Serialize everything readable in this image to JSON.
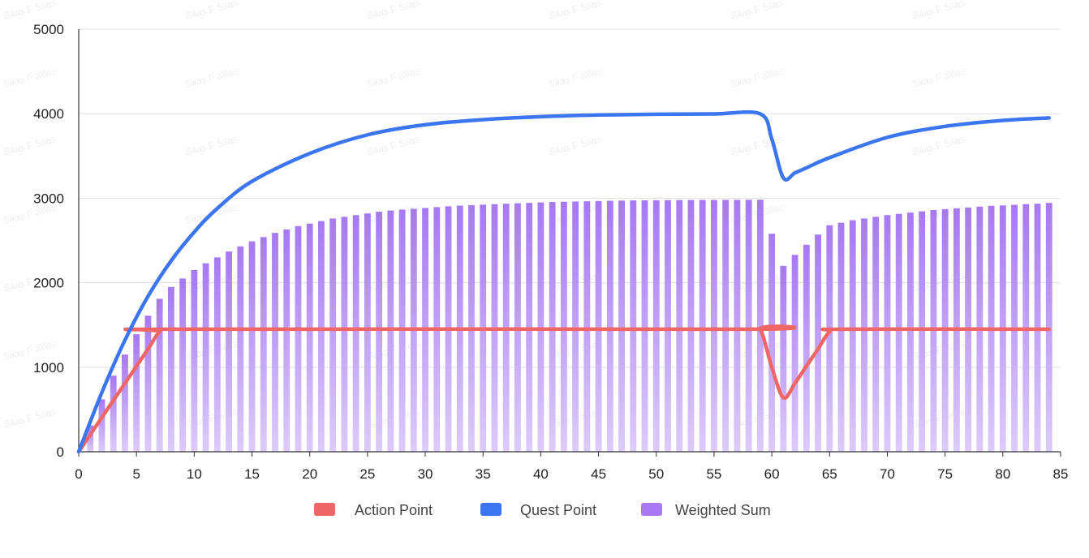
{
  "chart_data": {
    "type": "bar",
    "xlim": [
      0,
      85
    ],
    "ylim": [
      0,
      5000
    ],
    "x_ticks": [
      0,
      5,
      10,
      15,
      20,
      25,
      30,
      35,
      40,
      45,
      50,
      55,
      60,
      65,
      70,
      75,
      80,
      85
    ],
    "y_ticks": [
      0,
      1000,
      2000,
      3000,
      4000,
      5000
    ],
    "grid": "horizontal",
    "legend_position": "bottom-center",
    "watermark_text": "Silas F Silas",
    "colors": {
      "action_point": "#ee6666",
      "quest_point": "#3b76f0",
      "weighted_sum_top": "#a779f2",
      "weighted_sum_bottom": "#dccbfa"
    },
    "legend": [
      {
        "key": "action_point",
        "label": "Action Point"
      },
      {
        "key": "quest_point",
        "label": "Quest Point"
      },
      {
        "key": "weighted_sum",
        "label": "Weighted Sum"
      }
    ],
    "series": [
      {
        "name": "Action Point",
        "type": "line",
        "x": [
          0,
          2,
          4,
          6,
          7,
          8,
          58,
          59,
          60,
          61,
          62,
          63,
          64,
          65,
          66,
          84
        ],
        "values": [
          0,
          405,
          810,
          1215,
          1420,
          1450,
          1450,
          1450,
          1000,
          640,
          810,
          1015,
          1215,
          1420,
          1450,
          1450
        ]
      },
      {
        "name": "Quest Point",
        "type": "line",
        "x": [
          0,
          2,
          4,
          6,
          8,
          10,
          12,
          15,
          20,
          25,
          30,
          35,
          40,
          45,
          50,
          55,
          59,
          60,
          61,
          62,
          63,
          65,
          70,
          75,
          80,
          84
        ],
        "values": [
          0,
          700,
          1320,
          1840,
          2260,
          2600,
          2880,
          3200,
          3530,
          3750,
          3870,
          3930,
          3965,
          3985,
          3993,
          3997,
          3998,
          3700,
          3240,
          3300,
          3360,
          3480,
          3720,
          3850,
          3920,
          3950
        ]
      },
      {
        "name": "Weighted Sum",
        "type": "bar",
        "x": [
          1,
          2,
          3,
          4,
          5,
          6,
          7,
          8,
          9,
          10,
          11,
          12,
          13,
          14,
          15,
          16,
          17,
          18,
          19,
          20,
          21,
          22,
          23,
          24,
          25,
          26,
          27,
          28,
          29,
          30,
          31,
          32,
          33,
          34,
          35,
          36,
          37,
          38,
          39,
          40,
          41,
          42,
          43,
          44,
          45,
          46,
          47,
          48,
          49,
          50,
          51,
          52,
          53,
          54,
          55,
          56,
          57,
          58,
          59,
          60,
          61,
          62,
          63,
          64,
          65,
          66,
          67,
          68,
          69,
          70,
          71,
          72,
          73,
          74,
          75,
          76,
          77,
          78,
          79,
          80,
          81,
          82,
          83,
          84
        ],
        "values": [
          310,
          620,
          900,
          1150,
          1390,
          1610,
          1810,
          1950,
          2050,
          2150,
          2230,
          2300,
          2370,
          2430,
          2490,
          2540,
          2590,
          2630,
          2670,
          2700,
          2730,
          2760,
          2780,
          2800,
          2820,
          2840,
          2855,
          2865,
          2875,
          2885,
          2895,
          2905,
          2912,
          2918,
          2924,
          2930,
          2935,
          2940,
          2945,
          2950,
          2955,
          2958,
          2961,
          2964,
          2967,
          2970,
          2972,
          2974,
          2975,
          2976,
          2977,
          2978,
          2979,
          2980,
          2980,
          2981,
          2981,
          2982,
          2982,
          2580,
          2200,
          2330,
          2450,
          2570,
          2680,
          2710,
          2740,
          2760,
          2780,
          2800,
          2815,
          2830,
          2845,
          2860,
          2870,
          2880,
          2890,
          2900,
          2910,
          2915,
          2922,
          2930,
          2935,
          2945
        ]
      }
    ]
  }
}
